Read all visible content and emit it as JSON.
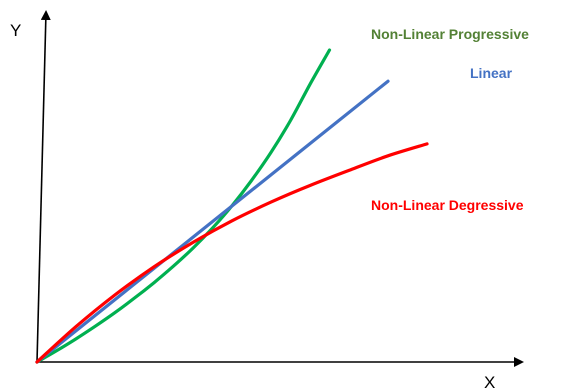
{
  "chart_data": {
    "type": "line",
    "title": "",
    "xlabel": "X",
    "ylabel": "Y",
    "grid": false,
    "legend": "none",
    "series": [
      {
        "name": "Non-Linear Progressive",
        "color": "#00b050",
        "x": [
          0,
          0.5,
          1,
          1.5,
          2,
          2.5,
          3,
          3.5,
          4,
          4.5,
          5,
          5.5,
          6,
          6.5,
          7,
          7.5
        ],
        "values": [
          0,
          0.43,
          0.89,
          1.38,
          1.9,
          2.46,
          3.05,
          3.69,
          4.38,
          5.15,
          6.01,
          6.98,
          8.06,
          9.29,
          10.68,
          12.0
        ]
      },
      {
        "name": "Linear",
        "color": "#4472c4",
        "x": [
          0,
          9.0
        ],
        "values": [
          0,
          10.8
        ]
      },
      {
        "name": "Non-Linear Degressive",
        "color": "#ff0000",
        "x": [
          0,
          1,
          2,
          3,
          4,
          5,
          6,
          7,
          8,
          9,
          10
        ],
        "values": [
          0,
          1.36,
          2.58,
          3.66,
          4.6,
          5.43,
          6.15,
          6.79,
          7.37,
          7.93,
          8.39
        ]
      }
    ],
    "xlim": [
      0,
      10.5
    ],
    "ylim": [
      0,
      13.2
    ]
  }
}
